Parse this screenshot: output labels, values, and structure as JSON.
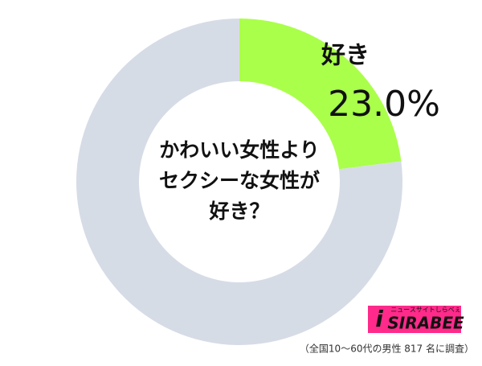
{
  "chart_data": {
    "type": "pie",
    "hole": true,
    "center_text": [
      "かわいい女性より",
      "セクシーな女性が",
      "好き？"
    ],
    "categories": [
      "好き",
      null
    ],
    "values": [
      23.0,
      77.0
    ],
    "value_labels": [
      "23.0%",
      null
    ],
    "colors": [
      "#aaff4a",
      "#d6dce6"
    ],
    "logo_tagline": "ニュースサイトしらべぇ",
    "logo_name": "SIRABEE",
    "footnote": "（全国10〜60代の男性 817 名に調査）"
  }
}
